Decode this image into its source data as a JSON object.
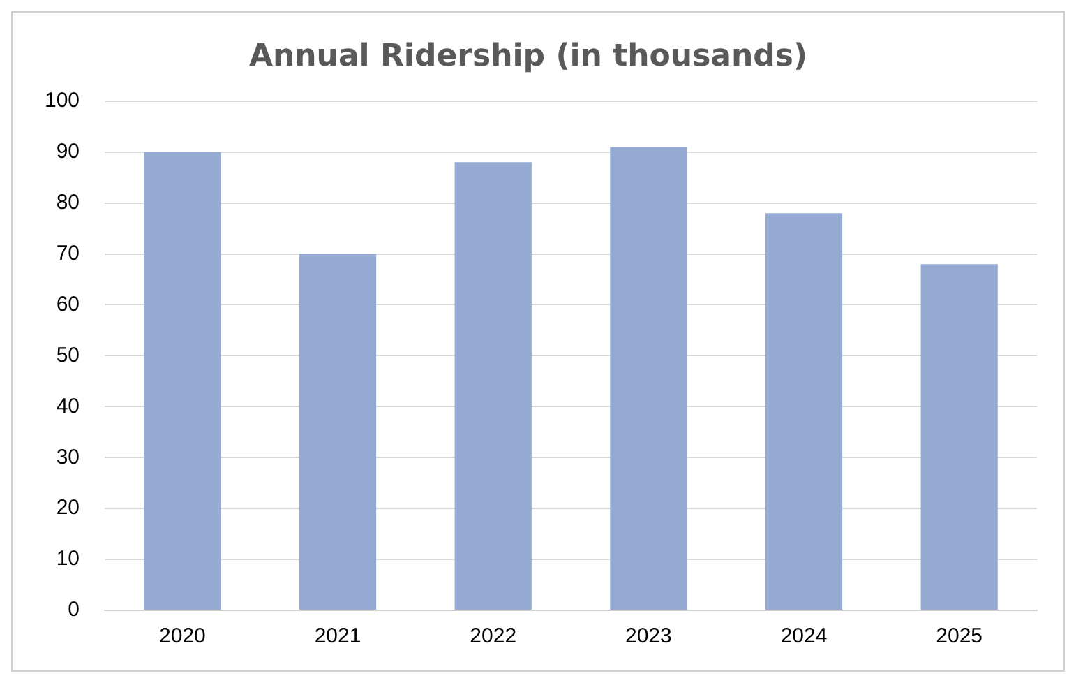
{
  "chart_data": {
    "type": "bar",
    "title": "Annual Ridership (in thousands)",
    "categories": [
      "2020",
      "2021",
      "2022",
      "2023",
      "2024",
      "2025"
    ],
    "values": [
      90,
      70,
      88,
      91,
      78,
      68
    ],
    "color": "#95abd4",
    "ylim": [
      0,
      100
    ],
    "yticks": [
      0,
      10,
      20,
      30,
      40,
      50,
      60,
      70,
      80,
      90,
      100
    ],
    "grid": "y"
  }
}
